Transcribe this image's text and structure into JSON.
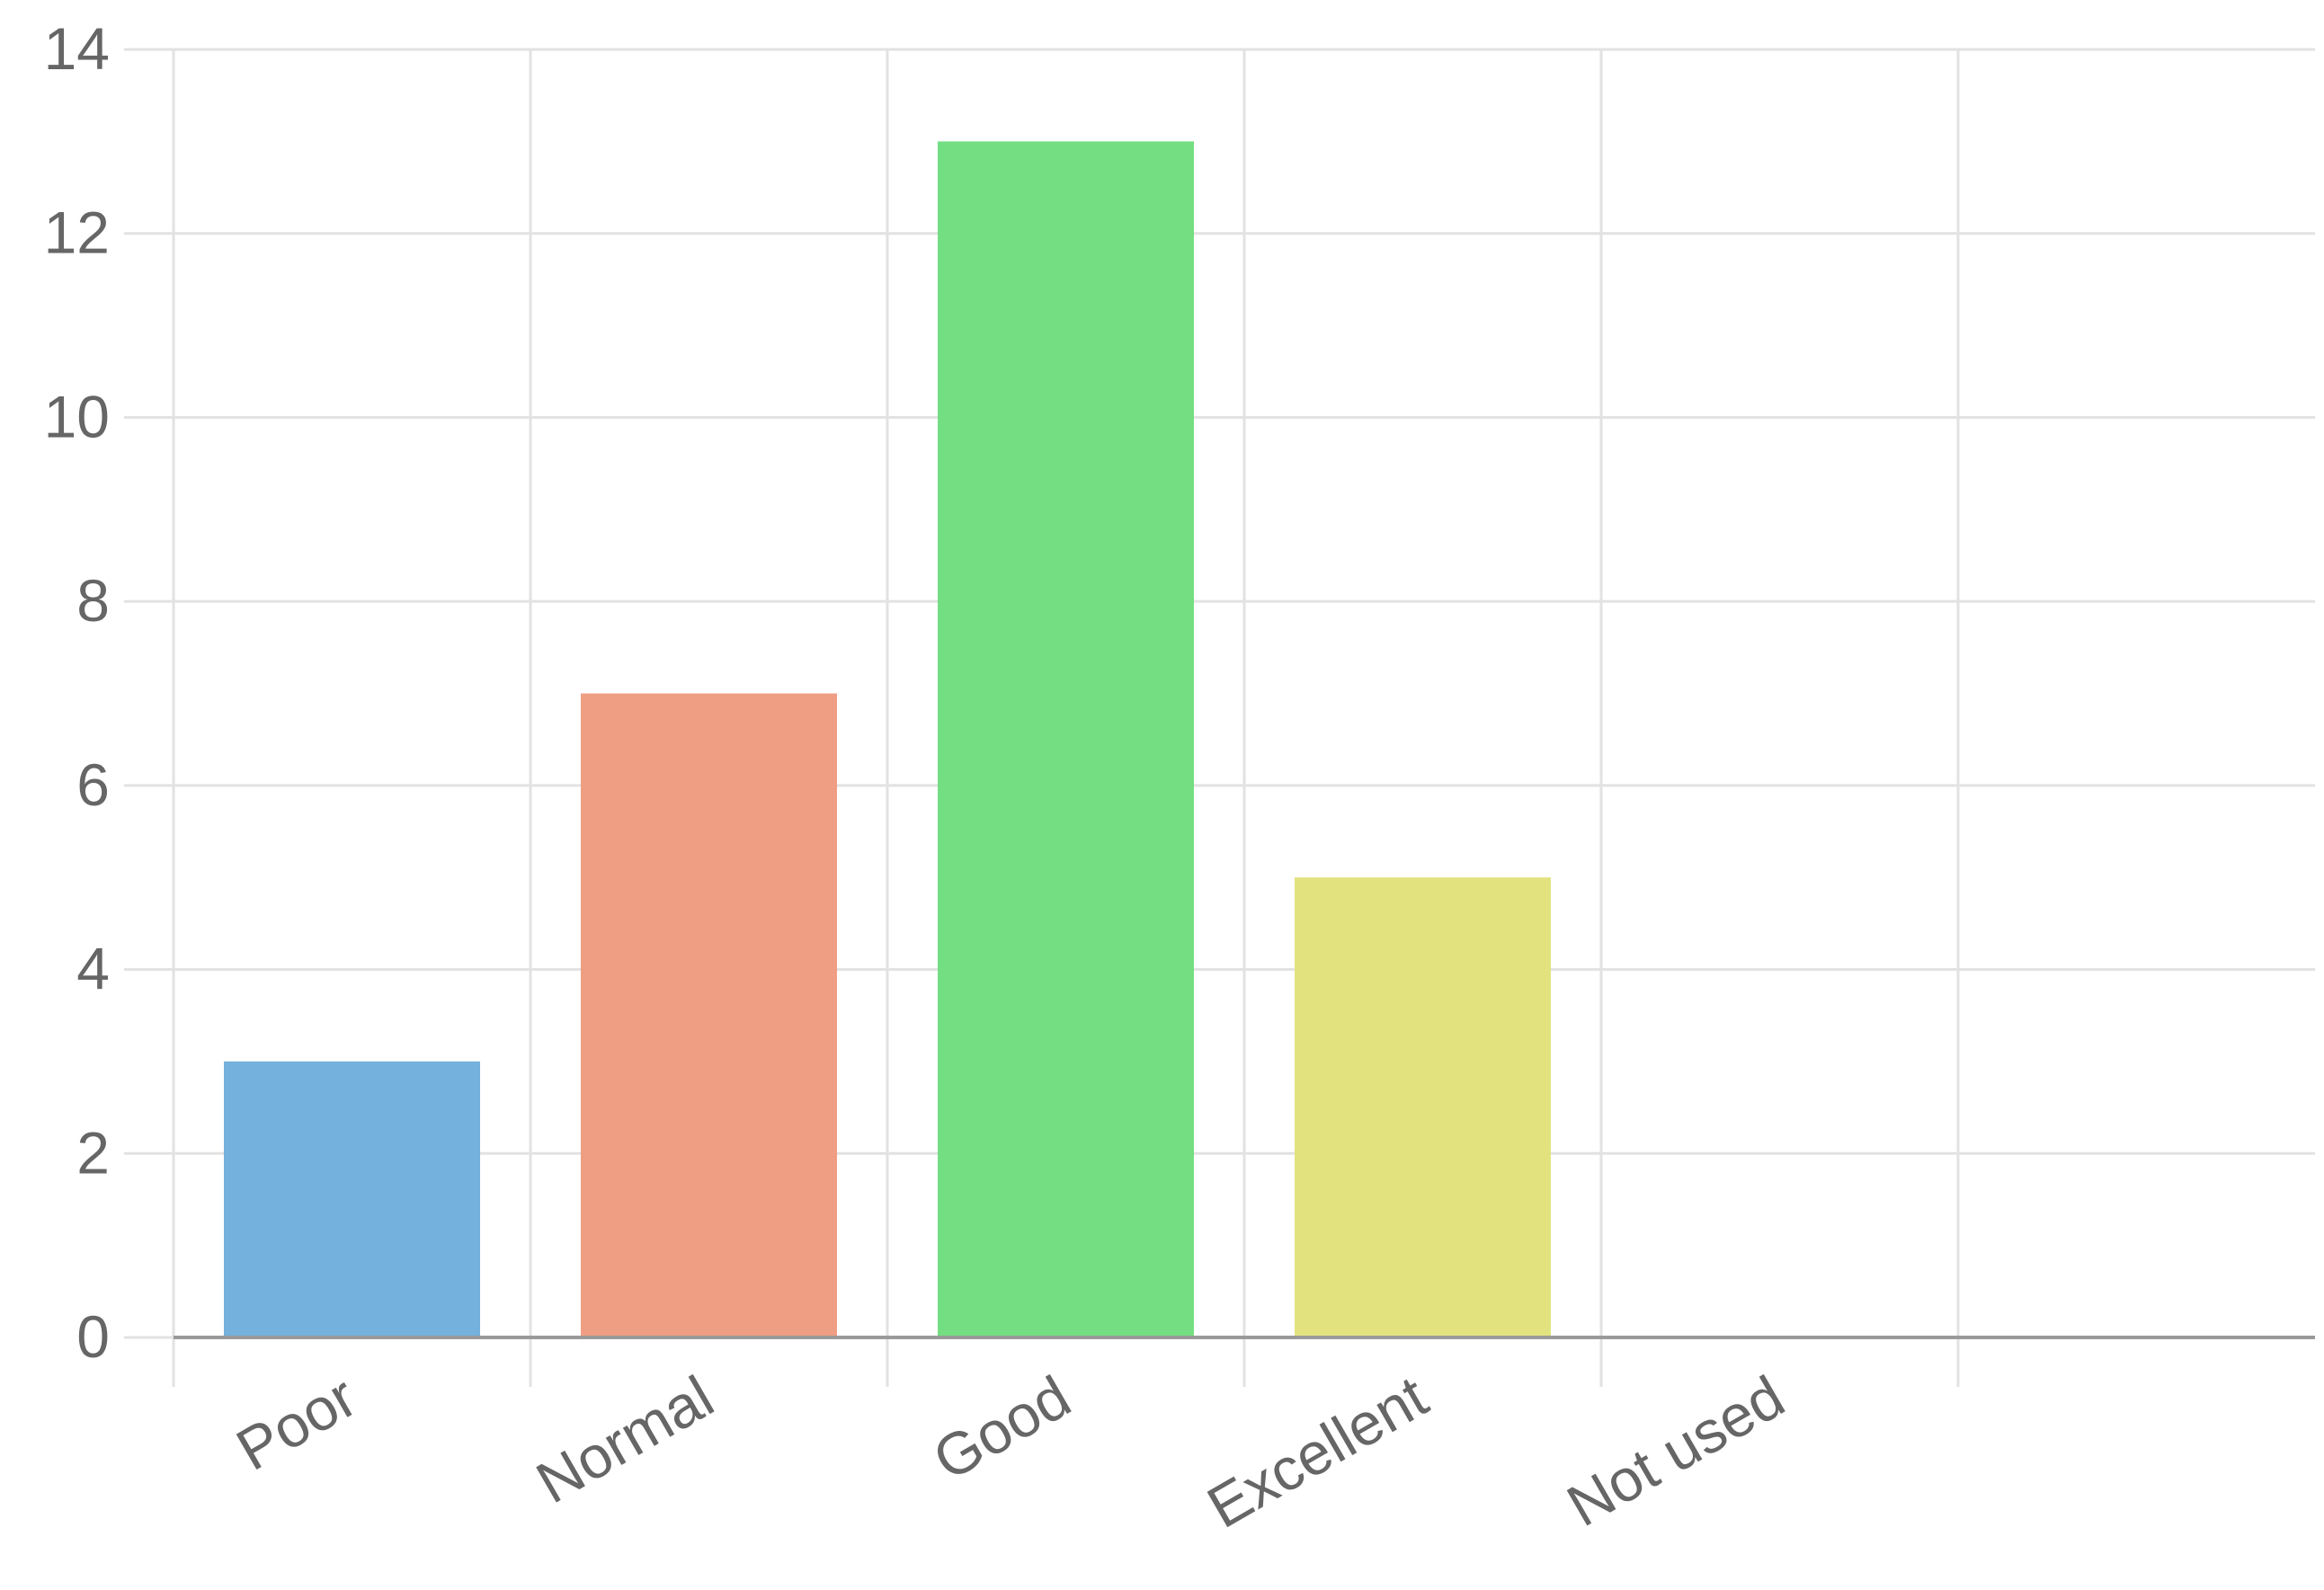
{
  "chart_data": {
    "type": "bar",
    "title": "",
    "xlabel": "",
    "ylabel": "",
    "categories": [
      "Poor",
      "Normal",
      "Good",
      "Excellent",
      "Not used"
    ],
    "values": [
      3,
      7,
      13,
      5,
      0
    ],
    "bar_colors": [
      "#74b1dc",
      "#ef9e84",
      "#74df82",
      "#e2e37f",
      "#cccccc"
    ],
    "ylim": [
      0,
      14
    ],
    "yticks": [
      "0",
      "2",
      "4",
      "6",
      "8",
      "10",
      "12",
      "14"
    ],
    "grid": true,
    "legend": "none"
  },
  "colors": {
    "grid": "#e2e2e2",
    "axis": "#9a9a9a",
    "tick_text": "#666666"
  }
}
